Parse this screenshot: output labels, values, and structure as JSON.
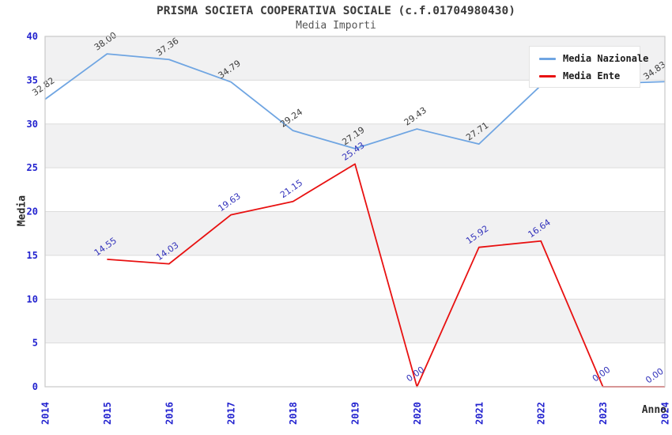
{
  "chart_data": {
    "type": "line",
    "title": "PRISMA SOCIETA COOPERATIVA SOCIALE (c.f.01704980430)",
    "subtitle": "Media Importi",
    "xlabel": "Anno",
    "ylabel": "Media",
    "categories": [
      "2014",
      "2015",
      "2016",
      "2017",
      "2018",
      "2019",
      "2020",
      "2021",
      "2022",
      "2023",
      "2024"
    ],
    "y_ticks": [
      "0",
      "5",
      "10",
      "15",
      "20",
      "25",
      "30",
      "35",
      "40"
    ],
    "ylim": [
      0,
      40
    ],
    "grid": true,
    "alternating_bands": true,
    "legend_position": "top-right",
    "axis_tick_color": "#2323cf",
    "series": [
      {
        "name": "Media Nazionale",
        "color": "#6fa5e2",
        "label_color": "#3d3d3d",
        "points": [
          {
            "x": "2014",
            "y": 32.82,
            "label": "32.82"
          },
          {
            "x": "2015",
            "y": 38.0,
            "label": "38.00"
          },
          {
            "x": "2016",
            "y": 37.36,
            "label": "37.36"
          },
          {
            "x": "2017",
            "y": 34.79,
            "label": "34.79"
          },
          {
            "x": "2018",
            "y": 29.24,
            "label": "29.24"
          },
          {
            "x": "2019",
            "y": 27.19,
            "label": "27.19"
          },
          {
            "x": "2020",
            "y": 29.43,
            "label": "29.43"
          },
          {
            "x": "2021",
            "y": 27.71,
            "label": "27.71"
          },
          {
            "x": "2022",
            "y": 34.4,
            "label": ""
          },
          {
            "x": "2023",
            "y": 34.6,
            "label": ""
          },
          {
            "x": "2024",
            "y": 34.83,
            "label": "34.83"
          }
        ]
      },
      {
        "name": "Media Ente",
        "color": "#e81111",
        "label_color": "#3333bb",
        "points": [
          {
            "x": "2015",
            "y": 14.55,
            "label": "14.55"
          },
          {
            "x": "2016",
            "y": 14.03,
            "label": "14.03"
          },
          {
            "x": "2017",
            "y": 19.63,
            "label": "19.63"
          },
          {
            "x": "2018",
            "y": 21.15,
            "label": "21.15"
          },
          {
            "x": "2019",
            "y": 25.43,
            "label": "25.43"
          },
          {
            "x": "2020",
            "y": 0.0,
            "label": "0.00"
          },
          {
            "x": "2021",
            "y": 15.92,
            "label": "15.92"
          },
          {
            "x": "2022",
            "y": 16.64,
            "label": "16.64"
          },
          {
            "x": "2023",
            "y": 0.0,
            "label": "0.00"
          },
          {
            "x": "2024",
            "y": 0.0,
            "label": "0.00"
          }
        ]
      }
    ]
  }
}
